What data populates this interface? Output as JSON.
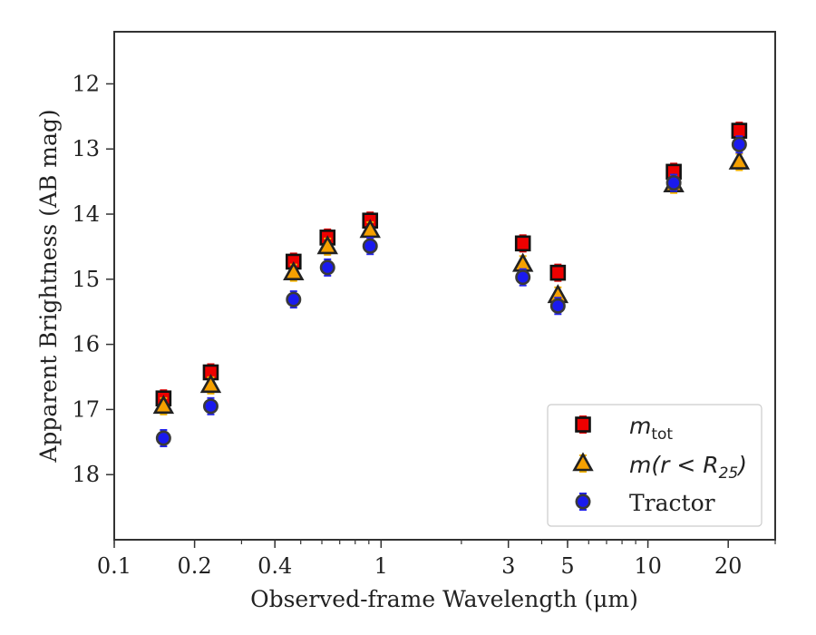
{
  "chart_data": {
    "type": "scatter",
    "xlabel": "Observed-frame Wavelength (μm)",
    "ylabel": "Apparent Brightness (AB mag)",
    "xscale": "log",
    "xlim": [
      0.1,
      30
    ],
    "ylim": [
      19.0,
      11.2
    ],
    "y_inverted": true,
    "grid": false,
    "legend_position": "lower-right",
    "x_ticks": [
      {
        "value": 0.1,
        "label": "0.1"
      },
      {
        "value": 0.2,
        "label": "0.2"
      },
      {
        "value": 0.4,
        "label": "0.4"
      },
      {
        "value": 1,
        "label": "1"
      },
      {
        "value": 3,
        "label": "3"
      },
      {
        "value": 5,
        "label": "5"
      },
      {
        "value": 10,
        "label": "10"
      },
      {
        "value": 20,
        "label": "20"
      }
    ],
    "y_ticks": [
      {
        "value": 12,
        "label": "12"
      },
      {
        "value": 13,
        "label": "13"
      },
      {
        "value": 14,
        "label": "14"
      },
      {
        "value": 15,
        "label": "15"
      },
      {
        "value": 16,
        "label": "16"
      },
      {
        "value": 17,
        "label": "17"
      },
      {
        "value": 18,
        "label": "18"
      }
    ],
    "series": [
      {
        "name": "m_tot",
        "legend_label": {
          "base": "m",
          "sub": "tot"
        },
        "marker": "square",
        "color": "#ee0000",
        "errorbar_color": "#dd0000",
        "points": [
          {
            "x": 0.153,
            "y": 16.83
          },
          {
            "x": 0.23,
            "y": 16.43
          },
          {
            "x": 0.47,
            "y": 14.73
          },
          {
            "x": 0.63,
            "y": 14.36
          },
          {
            "x": 0.91,
            "y": 14.1
          },
          {
            "x": 3.4,
            "y": 14.45
          },
          {
            "x": 4.6,
            "y": 14.9
          },
          {
            "x": 12.5,
            "y": 13.35
          },
          {
            "x": 22.0,
            "y": 12.72
          }
        ]
      },
      {
        "name": "m(r < R_25)",
        "legend_label": {
          "prefix": "m(r < R",
          "sub": "25",
          "suffix": ")"
        },
        "marker": "triangle",
        "color": "#f5a000",
        "errorbar_color": "#f0b000",
        "points": [
          {
            "x": 0.153,
            "y": 16.95
          },
          {
            "x": 0.23,
            "y": 16.63
          },
          {
            "x": 0.47,
            "y": 14.9
          },
          {
            "x": 0.63,
            "y": 14.5
          },
          {
            "x": 0.91,
            "y": 14.25
          },
          {
            "x": 3.4,
            "y": 14.77
          },
          {
            "x": 4.6,
            "y": 15.25
          },
          {
            "x": 12.5,
            "y": 13.55
          },
          {
            "x": 22.0,
            "y": 13.2
          }
        ]
      },
      {
        "name": "Tractor",
        "legend_label": {
          "text": "Tractor"
        },
        "marker": "circle",
        "color": "#1a1aee",
        "errorbar_color": "#2222ee",
        "points": [
          {
            "x": 0.153,
            "y": 17.44
          },
          {
            "x": 0.23,
            "y": 16.95
          },
          {
            "x": 0.47,
            "y": 15.31
          },
          {
            "x": 0.63,
            "y": 14.82
          },
          {
            "x": 0.91,
            "y": 14.49
          },
          {
            "x": 3.4,
            "y": 14.97
          },
          {
            "x": 4.6,
            "y": 15.41
          },
          {
            "x": 12.5,
            "y": 13.52
          },
          {
            "x": 22.0,
            "y": 12.93
          }
        ]
      }
    ]
  }
}
